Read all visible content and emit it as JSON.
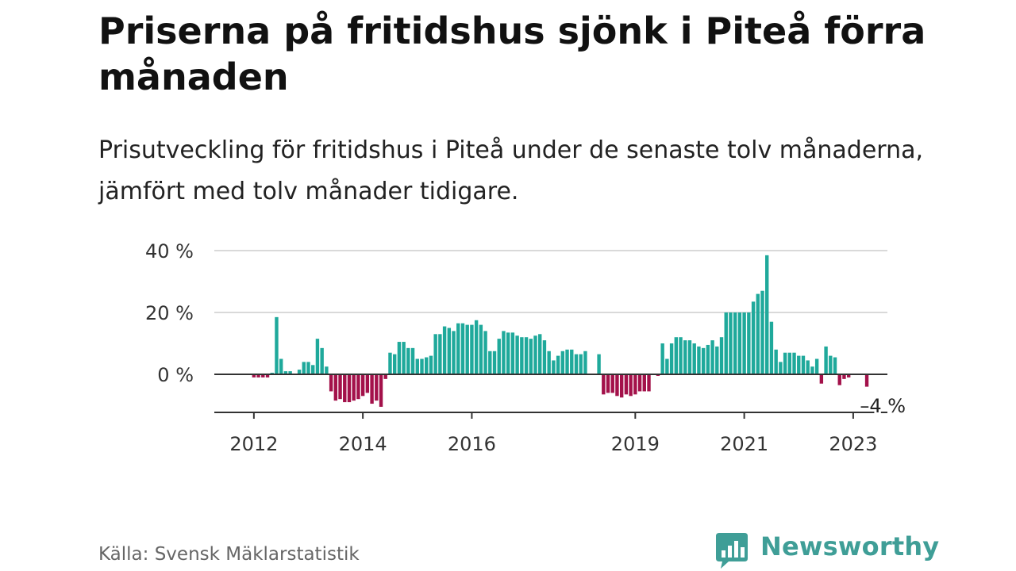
{
  "header": {
    "title": "Priserna på fritidshus sjönk i Piteå förra månaden",
    "subtitle": "Prisutveckling för fritidshus i Piteå under de senaste tolv månaderna, jämfört med tolv månader tidigare."
  },
  "footer": {
    "source": "Källa: Svensk Mäklarstatistik",
    "brand": "Newsworthy"
  },
  "colors": {
    "positive": "#1fa99b",
    "negative": "#a3114a",
    "grid": "#d9d9d9",
    "zero_line": "#333333",
    "brand": "#3f9e97"
  },
  "chart_data": {
    "type": "bar",
    "title": "Priserna på fritidshus sjönk i Piteå förra månaden",
    "subtitle": "Prisutveckling för fritidshus i Piteå under de senaste tolv månaderna, jämfört med tolv månader tidigare.",
    "xlabel": "",
    "ylabel": "",
    "x_start": "2011-10",
    "frequency": "monthly",
    "unit": "%",
    "ylim": [
      -12,
      42
    ],
    "yticks": [
      {
        "value": 40,
        "label": "40 %"
      },
      {
        "value": 20,
        "label": "20 %"
      },
      {
        "value": 0,
        "label": "0 %"
      }
    ],
    "xticks": [
      {
        "index": 3,
        "label": "2012"
      },
      {
        "index": 27,
        "label": "2014"
      },
      {
        "index": 51,
        "label": "2016"
      },
      {
        "index": 87,
        "label": "2019"
      },
      {
        "index": 111,
        "label": "2021"
      },
      {
        "index": 135,
        "label": "2023"
      }
    ],
    "annotation": {
      "index": 141,
      "label": "–4 %"
    },
    "grid": true,
    "values": [
      null,
      null,
      null,
      -1,
      -1,
      -1,
      -1,
      0.5,
      18.5,
      5,
      1,
      1,
      null,
      1.5,
      4,
      4,
      3,
      11.5,
      8.5,
      2.5,
      -5.5,
      -8.5,
      -8,
      -9,
      -9,
      -8.5,
      -8,
      -7,
      -6,
      -9.5,
      -8.5,
      -10.5,
      -1.5,
      7,
      6.5,
      10.5,
      10.5,
      8.5,
      8.5,
      5,
      5,
      5.5,
      6,
      13,
      13,
      15.5,
      15,
      14,
      16.5,
      16.5,
      16,
      16,
      17.5,
      16,
      14,
      7.5,
      7.5,
      11.5,
      14,
      13.5,
      13.5,
      12.5,
      12,
      12,
      11.5,
      12.5,
      13,
      11,
      7.5,
      4.5,
      6,
      7.5,
      8,
      8,
      6.5,
      6.5,
      7.5,
      null,
      null,
      6.5,
      -6.5,
      -6,
      -6,
      -7,
      -7.5,
      -6.5,
      -7,
      -6.5,
      -5.5,
      -5.5,
      -5.5,
      null,
      -0.5,
      10,
      5,
      10,
      12,
      12,
      11,
      11,
      10,
      9,
      8.5,
      9.5,
      11,
      9,
      12,
      20,
      20,
      20,
      20,
      20,
      20,
      23.5,
      26,
      27,
      38.5,
      17,
      8,
      4,
      7,
      7,
      7,
      6,
      6,
      4.5,
      2.5,
      5,
      -3,
      9,
      6,
      5.5,
      -3.5,
      -1.5,
      -1,
      null,
      null,
      null,
      -4
    ]
  }
}
